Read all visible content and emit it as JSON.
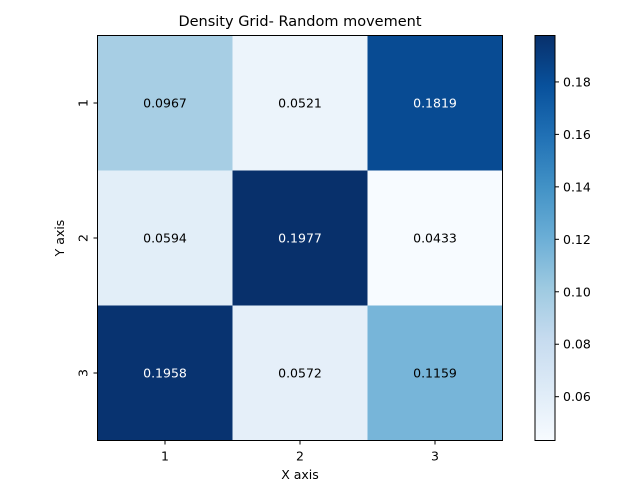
{
  "chart_data": {
    "type": "heatmap",
    "title": "Density Grid- Random movement",
    "xlabel": "X axis",
    "ylabel": "Y axis",
    "x_categories": [
      "1",
      "2",
      "3"
    ],
    "y_categories": [
      "1",
      "2",
      "3"
    ],
    "values": [
      [
        0.0967,
        0.0521,
        0.1819
      ],
      [
        0.0594,
        0.1977,
        0.0433
      ],
      [
        0.1958,
        0.0572,
        0.1159
      ]
    ],
    "cell_labels": [
      [
        "0.0967",
        "0.0521",
        "0.1819"
      ],
      [
        "0.0594",
        "0.1977",
        "0.0433"
      ],
      [
        "0.1958",
        "0.0572",
        "0.1159"
      ]
    ],
    "colormap": "Blues",
    "colorbar": {
      "range": [
        0.0433,
        0.1977
      ],
      "ticks": [
        0.06,
        0.08,
        0.1,
        0.12,
        0.14,
        0.16,
        0.18
      ],
      "tick_labels": [
        "0.06",
        "0.08",
        "0.10",
        "0.12",
        "0.14",
        "0.16",
        "0.18"
      ]
    }
  }
}
